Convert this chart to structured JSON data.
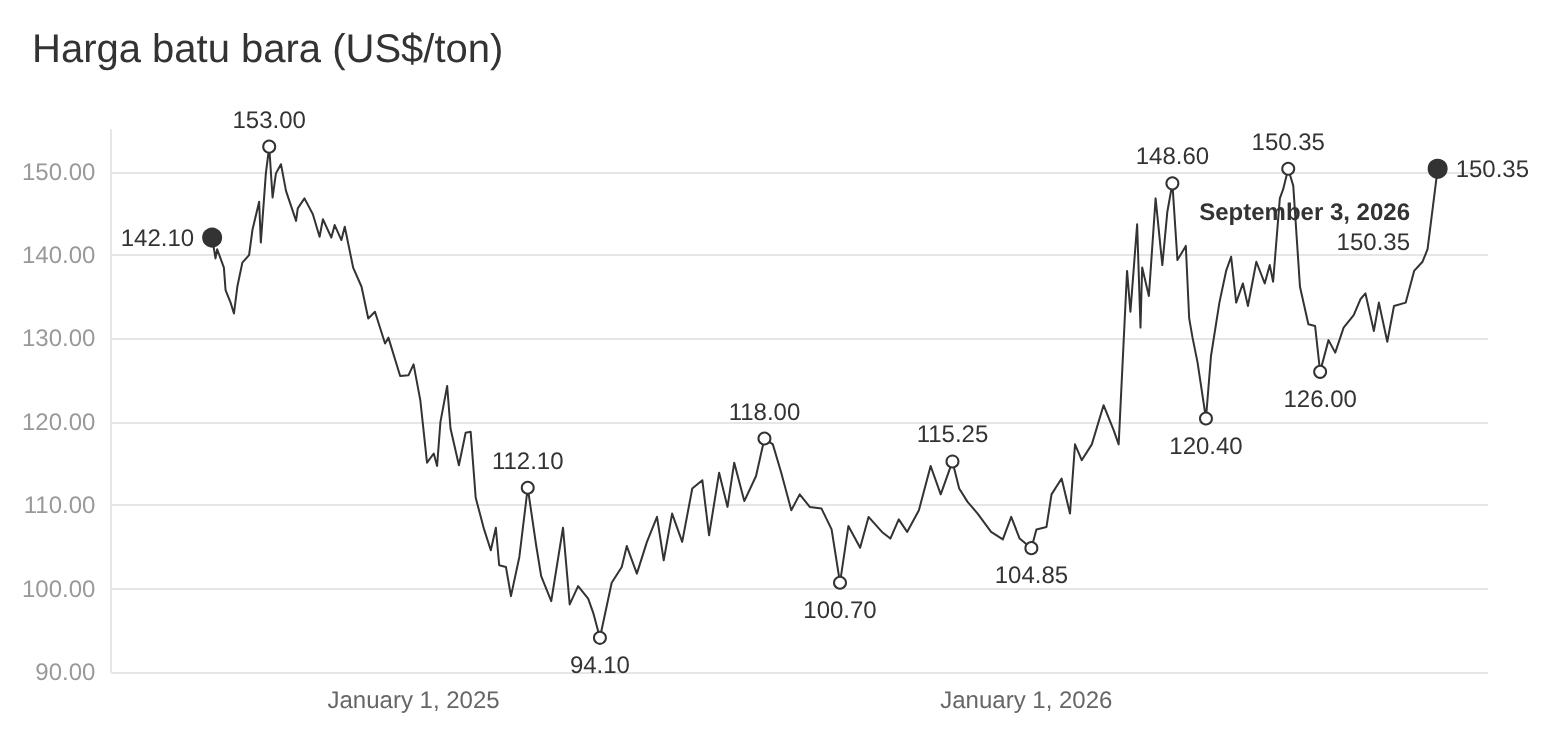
{
  "chart_data": {
    "type": "line",
    "title": "Harga batu bara (US$/ton)",
    "x": [
      "2024-09-03",
      "2024-09-05",
      "2024-09-06",
      "2024-09-10",
      "2024-09-11",
      "2024-09-14",
      "2024-09-16",
      "2024-09-18",
      "2024-09-21",
      "2024-09-25",
      "2024-09-27",
      "2024-10-01",
      "2024-10-02",
      "2024-10-05",
      "2024-10-07",
      "2024-10-09",
      "2024-10-11",
      "2024-10-14",
      "2024-10-17",
      "2024-10-20",
      "2024-10-23",
      "2024-10-24",
      "2024-10-28",
      "2024-11-02",
      "2024-11-06",
      "2024-11-08",
      "2024-11-13",
      "2024-11-15",
      "2024-11-19",
      "2024-11-21",
      "2024-11-26",
      "2024-12-01",
      "2024-12-05",
      "2024-12-09",
      "2024-12-15",
      "2024-12-17",
      "2024-12-24",
      "2024-12-29",
      "2025-01-01",
      "2025-01-05",
      "2025-01-09",
      "2025-01-13",
      "2025-01-15",
      "2025-01-17",
      "2025-01-21",
      "2025-01-23",
      "2025-01-28",
      "2025-02-01",
      "2025-02-04",
      "2025-02-07",
      "2025-02-12",
      "2025-02-16",
      "2025-02-19",
      "2025-02-21",
      "2025-02-25",
      "2025-02-28",
      "2025-03-05",
      "2025-03-10",
      "2025-03-15",
      "2025-03-18",
      "2025-03-24",
      "2025-03-31",
      "2025-04-04",
      "2025-04-09",
      "2025-04-15",
      "2025-04-18",
      "2025-04-22",
      "2025-04-29",
      "2025-05-05",
      "2025-05-08",
      "2025-05-14",
      "2025-05-20",
      "2025-05-26",
      "2025-05-30",
      "2025-06-04",
      "2025-06-10",
      "2025-06-16",
      "2025-06-22",
      "2025-06-26",
      "2025-07-02",
      "2025-07-07",
      "2025-07-11",
      "2025-07-17",
      "2025-07-24",
      "2025-07-29",
      "2025-08-03",
      "2025-08-08",
      "2025-08-14",
      "2025-08-19",
      "2025-08-25",
      "2025-09-01",
      "2025-09-07",
      "2025-09-12",
      "2025-09-17",
      "2025-09-24",
      "2025-09-29",
      "2025-10-07",
      "2025-10-12",
      "2025-10-17",
      "2025-10-22",
      "2025-10-29",
      "2025-11-05",
      "2025-11-11",
      "2025-11-18",
      "2025-11-22",
      "2025-11-27",
      "2025-12-03",
      "2025-12-11",
      "2025-12-18",
      "2025-12-23",
      "2025-12-28",
      "2026-01-04",
      "2026-01-07",
      "2026-01-13",
      "2026-01-16",
      "2026-01-22",
      "2026-01-27",
      "2026-01-30",
      "2026-02-03",
      "2026-02-09",
      "2026-02-16",
      "2026-02-22",
      "2026-02-25",
      "2026-03-02",
      "2026-03-04",
      "2026-03-08",
      "2026-03-10",
      "2026-03-11",
      "2026-03-15",
      "2026-03-19",
      "2026-03-23",
      "2026-03-26",
      "2026-03-29",
      "2026-04-01",
      "2026-04-06",
      "2026-04-08",
      "2026-04-10",
      "2026-04-13",
      "2026-04-18",
      "2026-04-21",
      "2026-04-26",
      "2026-04-30",
      "2026-05-03",
      "2026-05-06",
      "2026-05-10",
      "2026-05-13",
      "2026-05-18",
      "2026-05-23",
      "2026-05-26",
      "2026-05-28",
      "2026-06-01",
      "2026-06-03",
      "2026-06-06",
      "2026-06-09",
      "2026-06-13",
      "2026-06-18",
      "2026-06-22",
      "2026-06-25",
      "2026-06-30",
      "2026-07-04",
      "2026-07-09",
      "2026-07-15",
      "2026-07-19",
      "2026-07-22",
      "2026-07-27",
      "2026-07-30",
      "2026-08-04",
      "2026-08-08",
      "2026-08-15",
      "2026-08-20",
      "2026-08-25",
      "2026-08-28",
      "2026-09-03"
    ],
    "series": [
      {
        "color": "#333333",
        "values": [
          142.1,
          139.6,
          140.7,
          138.5,
          135.8,
          134.3,
          133.0,
          136.2,
          139.1,
          140.0,
          143.0,
          146.4,
          141.5,
          149.8,
          153.0,
          146.9,
          149.8,
          150.9,
          147.7,
          145.9,
          144.1,
          145.6,
          146.8,
          144.9,
          142.2,
          144.3,
          142.1,
          143.6,
          141.8,
          143.4,
          138.5,
          136.2,
          132.4,
          133.2,
          129.4,
          130.1,
          125.5,
          125.6,
          126.9,
          122.6,
          115.1,
          116.2,
          114.7,
          120.0,
          124.3,
          119.2,
          114.8,
          118.7,
          118.8,
          110.9,
          107.1,
          104.6,
          107.3,
          102.8,
          102.6,
          99.1,
          103.8,
          112.1,
          105.2,
          101.5,
          98.5,
          107.3,
          98.1,
          100.3,
          98.8,
          97.1,
          94.1,
          100.7,
          102.6,
          105.1,
          101.8,
          105.6,
          108.6,
          103.4,
          109.0,
          105.6,
          112.0,
          113.0,
          106.4,
          113.9,
          109.8,
          115.1,
          110.5,
          113.5,
          118.0,
          117.3,
          113.9,
          109.4,
          111.3,
          109.8,
          109.6,
          107.1,
          100.7,
          107.5,
          104.9,
          108.6,
          106.8,
          106.0,
          108.3,
          106.8,
          109.4,
          114.7,
          111.3,
          115.25,
          112.0,
          110.4,
          109.0,
          106.8,
          105.9,
          108.6,
          106.0,
          104.85,
          107.1,
          107.4,
          111.3,
          113.2,
          109.0,
          117.3,
          115.4,
          117.3,
          122.0,
          119.0,
          117.3,
          138.1,
          133.2,
          143.7,
          131.3,
          138.5,
          135.1,
          146.8,
          138.8,
          145.2,
          148.6,
          139.4,
          141.1,
          132.4,
          130.1,
          127.1,
          120.4,
          127.9,
          134.3,
          138.1,
          139.8,
          134.3,
          136.6,
          133.9,
          139.2,
          136.6,
          138.8,
          136.8,
          146.8,
          147.9,
          150.35,
          148.3,
          136.2,
          131.7,
          131.5,
          126.0,
          129.8,
          128.3,
          131.3,
          132.8,
          134.7,
          135.4,
          130.9,
          134.3,
          129.6,
          133.9,
          134.3,
          138.1,
          139.2,
          140.7,
          150.35
        ]
      }
    ],
    "xlim": [
      "2024-07-05",
      "2026-10-03"
    ],
    "xticks": [
      {
        "value": "2025-01-01",
        "label": "January 1, 2025"
      },
      {
        "value": "2026-01-01",
        "label": "January 1, 2026"
      }
    ],
    "ylim": [
      90,
      155
    ],
    "yticks": [
      {
        "value": 90,
        "label": "90.00"
      },
      {
        "value": 100,
        "label": "100.00"
      },
      {
        "value": 110,
        "label": "110.00"
      },
      {
        "value": 120,
        "label": "120.00"
      },
      {
        "value": 130,
        "label": "130.00"
      },
      {
        "value": 140,
        "label": "140.00"
      },
      {
        "value": 150,
        "label": "150.00"
      }
    ],
    "grid": "y",
    "marker": "none",
    "line_style": "solid",
    "annotations": [
      {
        "text": "142.10",
        "x": "2024-09-03",
        "y": 142.1
      },
      {
        "text": "153.00",
        "x": "2024-10-07",
        "y": 153.0
      },
      {
        "text": "112.10",
        "x": "2025-03-10",
        "y": 112.1
      },
      {
        "text": "94.10",
        "x": "2025-04-22",
        "y": 94.1
      },
      {
        "text": "118.00",
        "x": "2025-07-29",
        "y": 118.0
      },
      {
        "text": "100.70",
        "x": "2025-09-12",
        "y": 100.7
      },
      {
        "text": "115.25",
        "x": "2025-11-18",
        "y": 115.25
      },
      {
        "text": "104.85",
        "x": "2026-01-04",
        "y": 104.85
      },
      {
        "text": "148.60",
        "x": "2026-03-29",
        "y": 148.6
      },
      {
        "text": "120.40",
        "x": "2026-04-18",
        "y": 120.4
      },
      {
        "text": "150.35",
        "x": "2026-06-06",
        "y": 150.35
      },
      {
        "text": "126.00",
        "x": "2026-06-25",
        "y": 126.0
      },
      {
        "text": "150.35",
        "x": "2026-09-03",
        "y": 150.35
      },
      "September 3, 2026",
      "150.35"
    ]
  }
}
